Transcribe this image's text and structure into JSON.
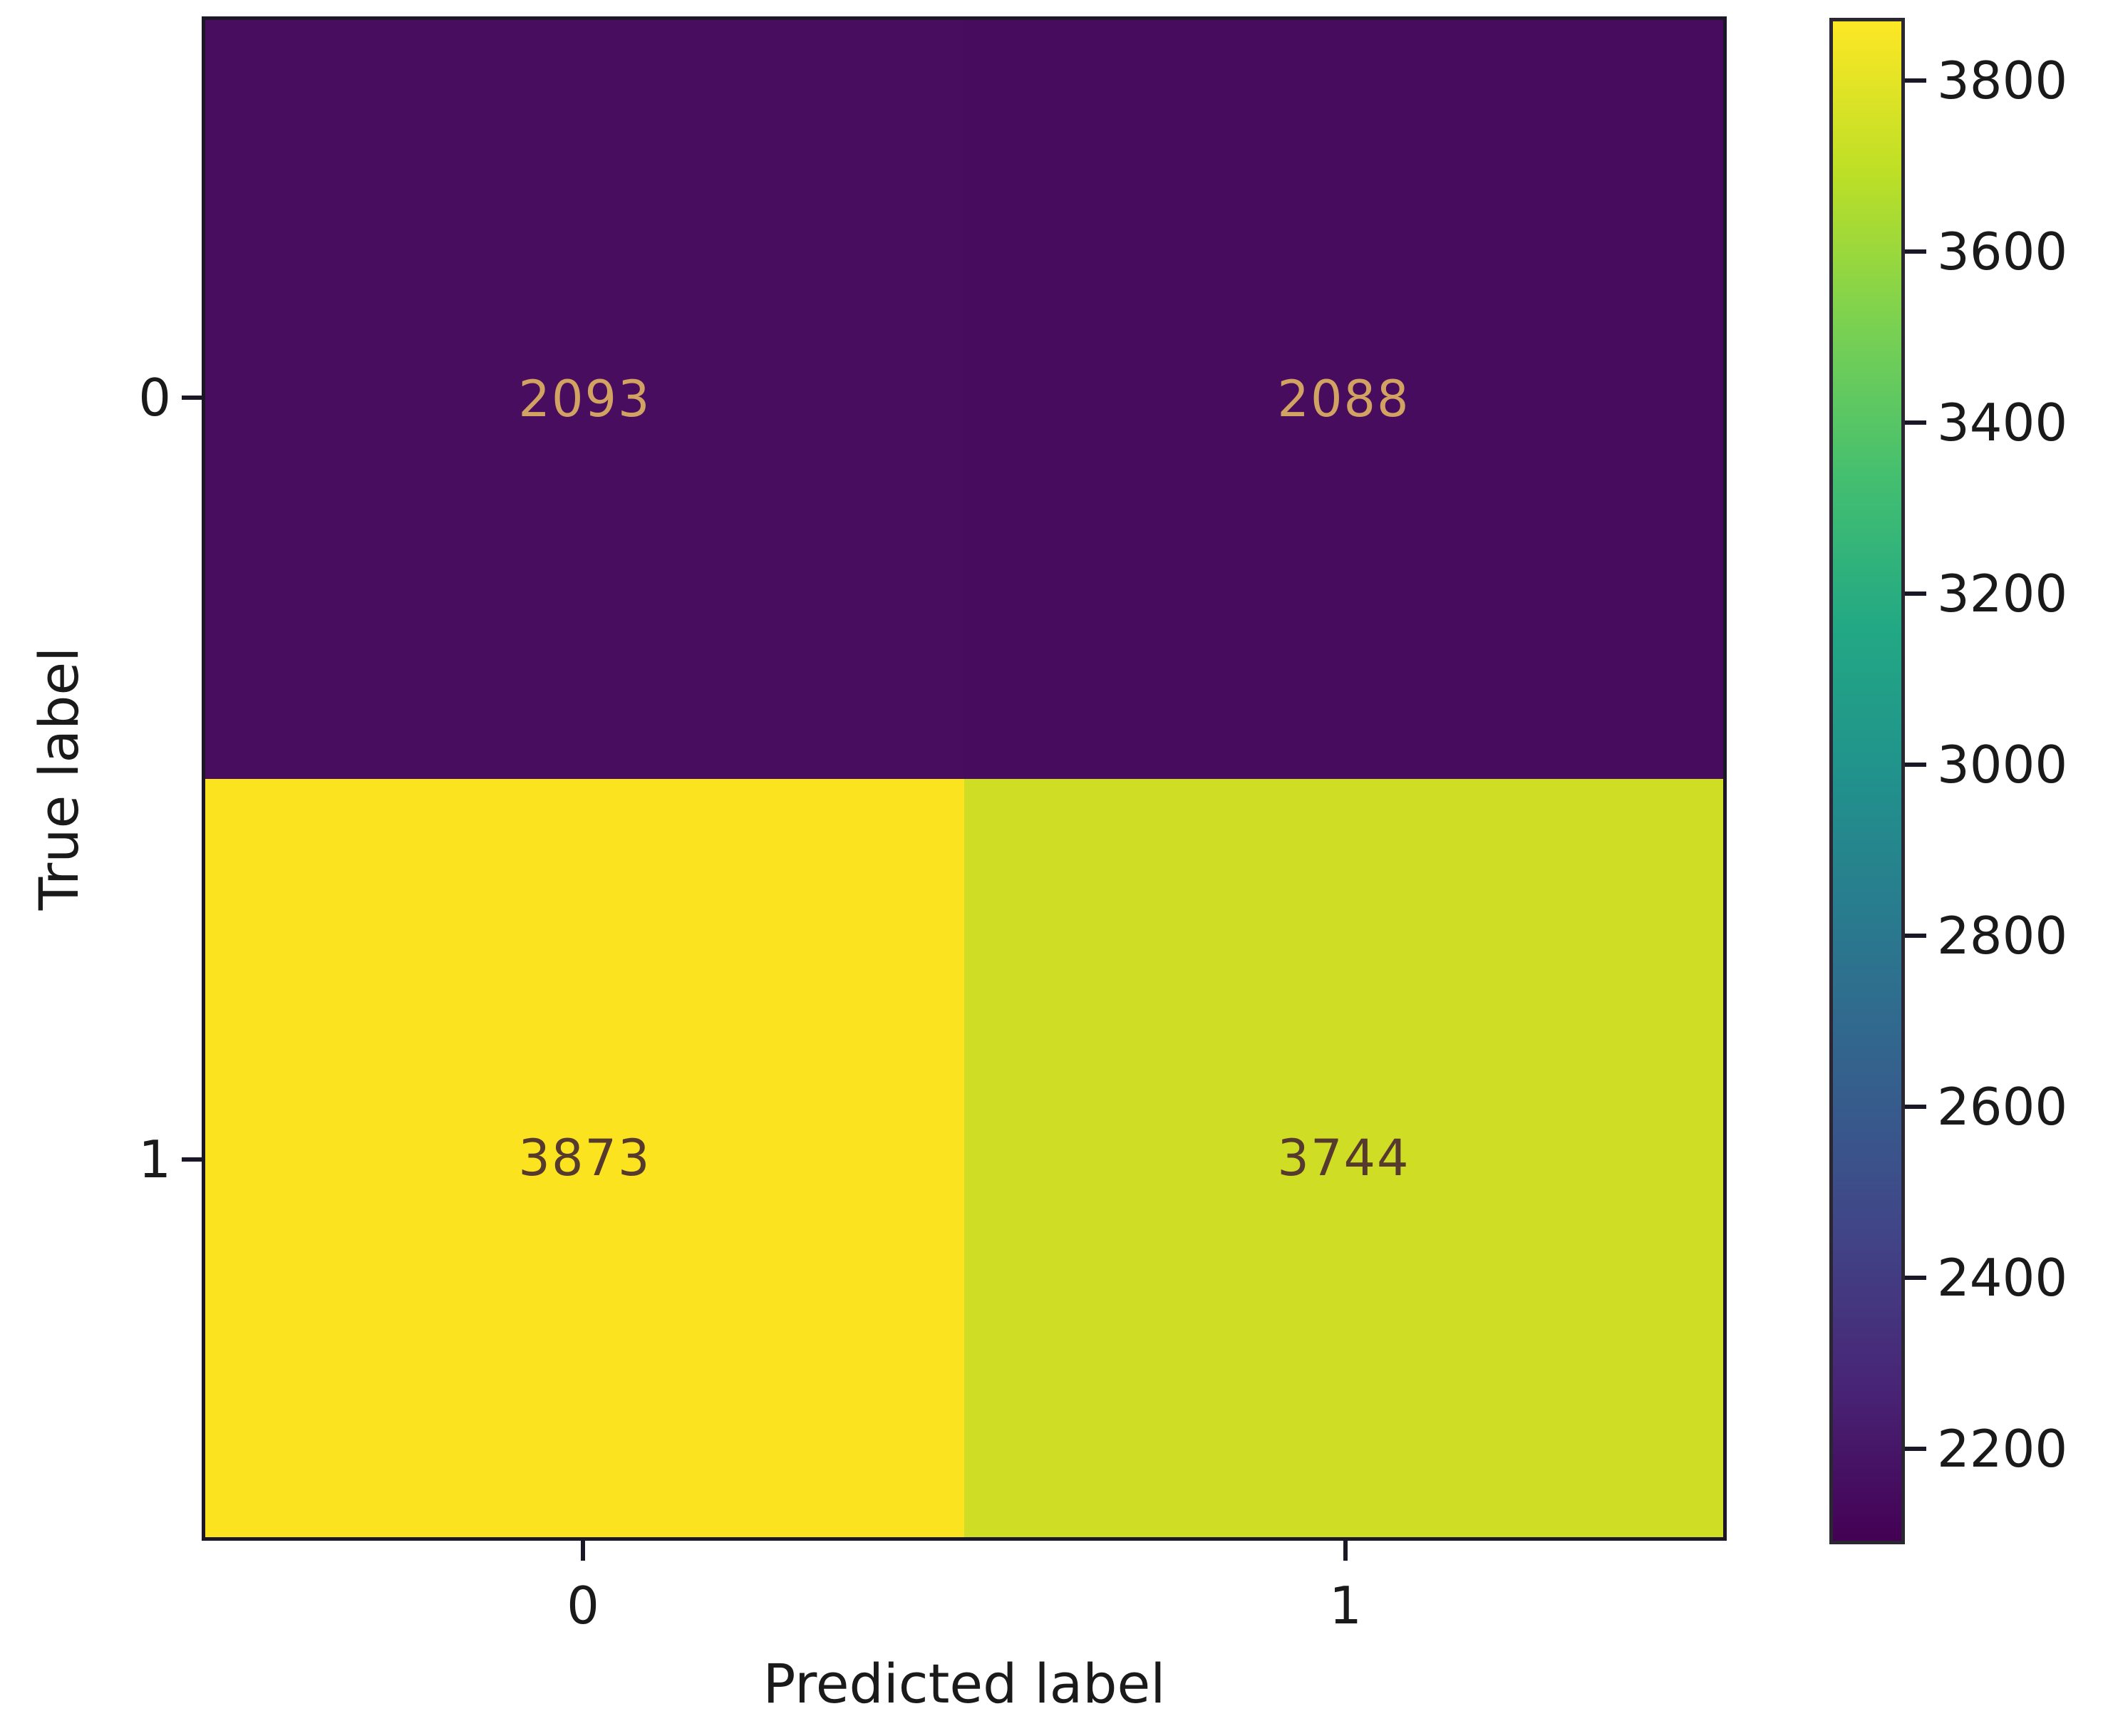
{
  "figure": {
    "background": "#ffffff"
  },
  "chart_data": {
    "type": "heatmap",
    "subtype": "confusion-matrix",
    "title": "",
    "xlabel": "Predicted label",
    "ylabel": "True label",
    "x_tick_labels": [
      "0",
      "1"
    ],
    "y_tick_labels": [
      "0",
      "1"
    ],
    "matrix": [
      [
        2093,
        2088
      ],
      [
        3873,
        3744
      ]
    ],
    "vmin": 2088,
    "vmax": 3873,
    "colormap": "viridis",
    "grid": false,
    "legend_position": "right-colorbar",
    "cells": [
      {
        "row": 0,
        "col": 0,
        "value": "2093",
        "bg": "#480d5e",
        "fg": "#d2a263"
      },
      {
        "row": 0,
        "col": 1,
        "value": "2088",
        "bg": "#470c5d",
        "fg": "#d2a263"
      },
      {
        "row": 1,
        "col": 0,
        "value": "3873",
        "bg": "#fbe31f",
        "fg": "#573a2e"
      },
      {
        "row": 1,
        "col": 1,
        "value": "3744",
        "bg": "#cfdd25",
        "fg": "#573a2e"
      }
    ],
    "colorbar": {
      "ticks": [
        3800,
        3600,
        3400,
        3200,
        3000,
        2800,
        2600,
        2400,
        2200
      ],
      "gradient_stops_top_to_bottom": [
        "#fde725",
        "#bddf26",
        "#7ad151",
        "#44bf70",
        "#22a884",
        "#21918c",
        "#2a788e",
        "#355f8d",
        "#414487",
        "#482475",
        "#440154"
      ]
    }
  }
}
